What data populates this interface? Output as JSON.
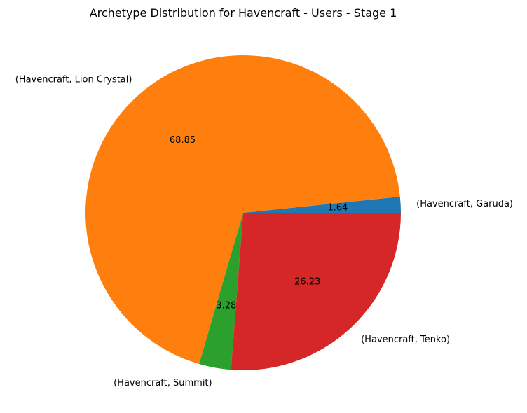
{
  "chart_data": {
    "type": "pie",
    "title": "Archetype Distribution for Havencraft - Users - Stage 1",
    "start_angle_deg": 0,
    "direction": "counterclockwise",
    "slices": [
      {
        "label": "(Havencraft, Garuda)",
        "value": 1.64,
        "value_label": "1.64",
        "color": "#1f77b4"
      },
      {
        "label": "(Havencraft, Lion Crystal)",
        "value": 68.85,
        "value_label": "68.85",
        "color": "#ff7f0e"
      },
      {
        "label": "(Havencraft, Summit)",
        "value": 3.28,
        "value_label": "3.28",
        "color": "#2ca02c"
      },
      {
        "label": "(Havencraft, Tenko)",
        "value": 26.23,
        "value_label": "26.23",
        "color": "#d62728"
      }
    ]
  }
}
